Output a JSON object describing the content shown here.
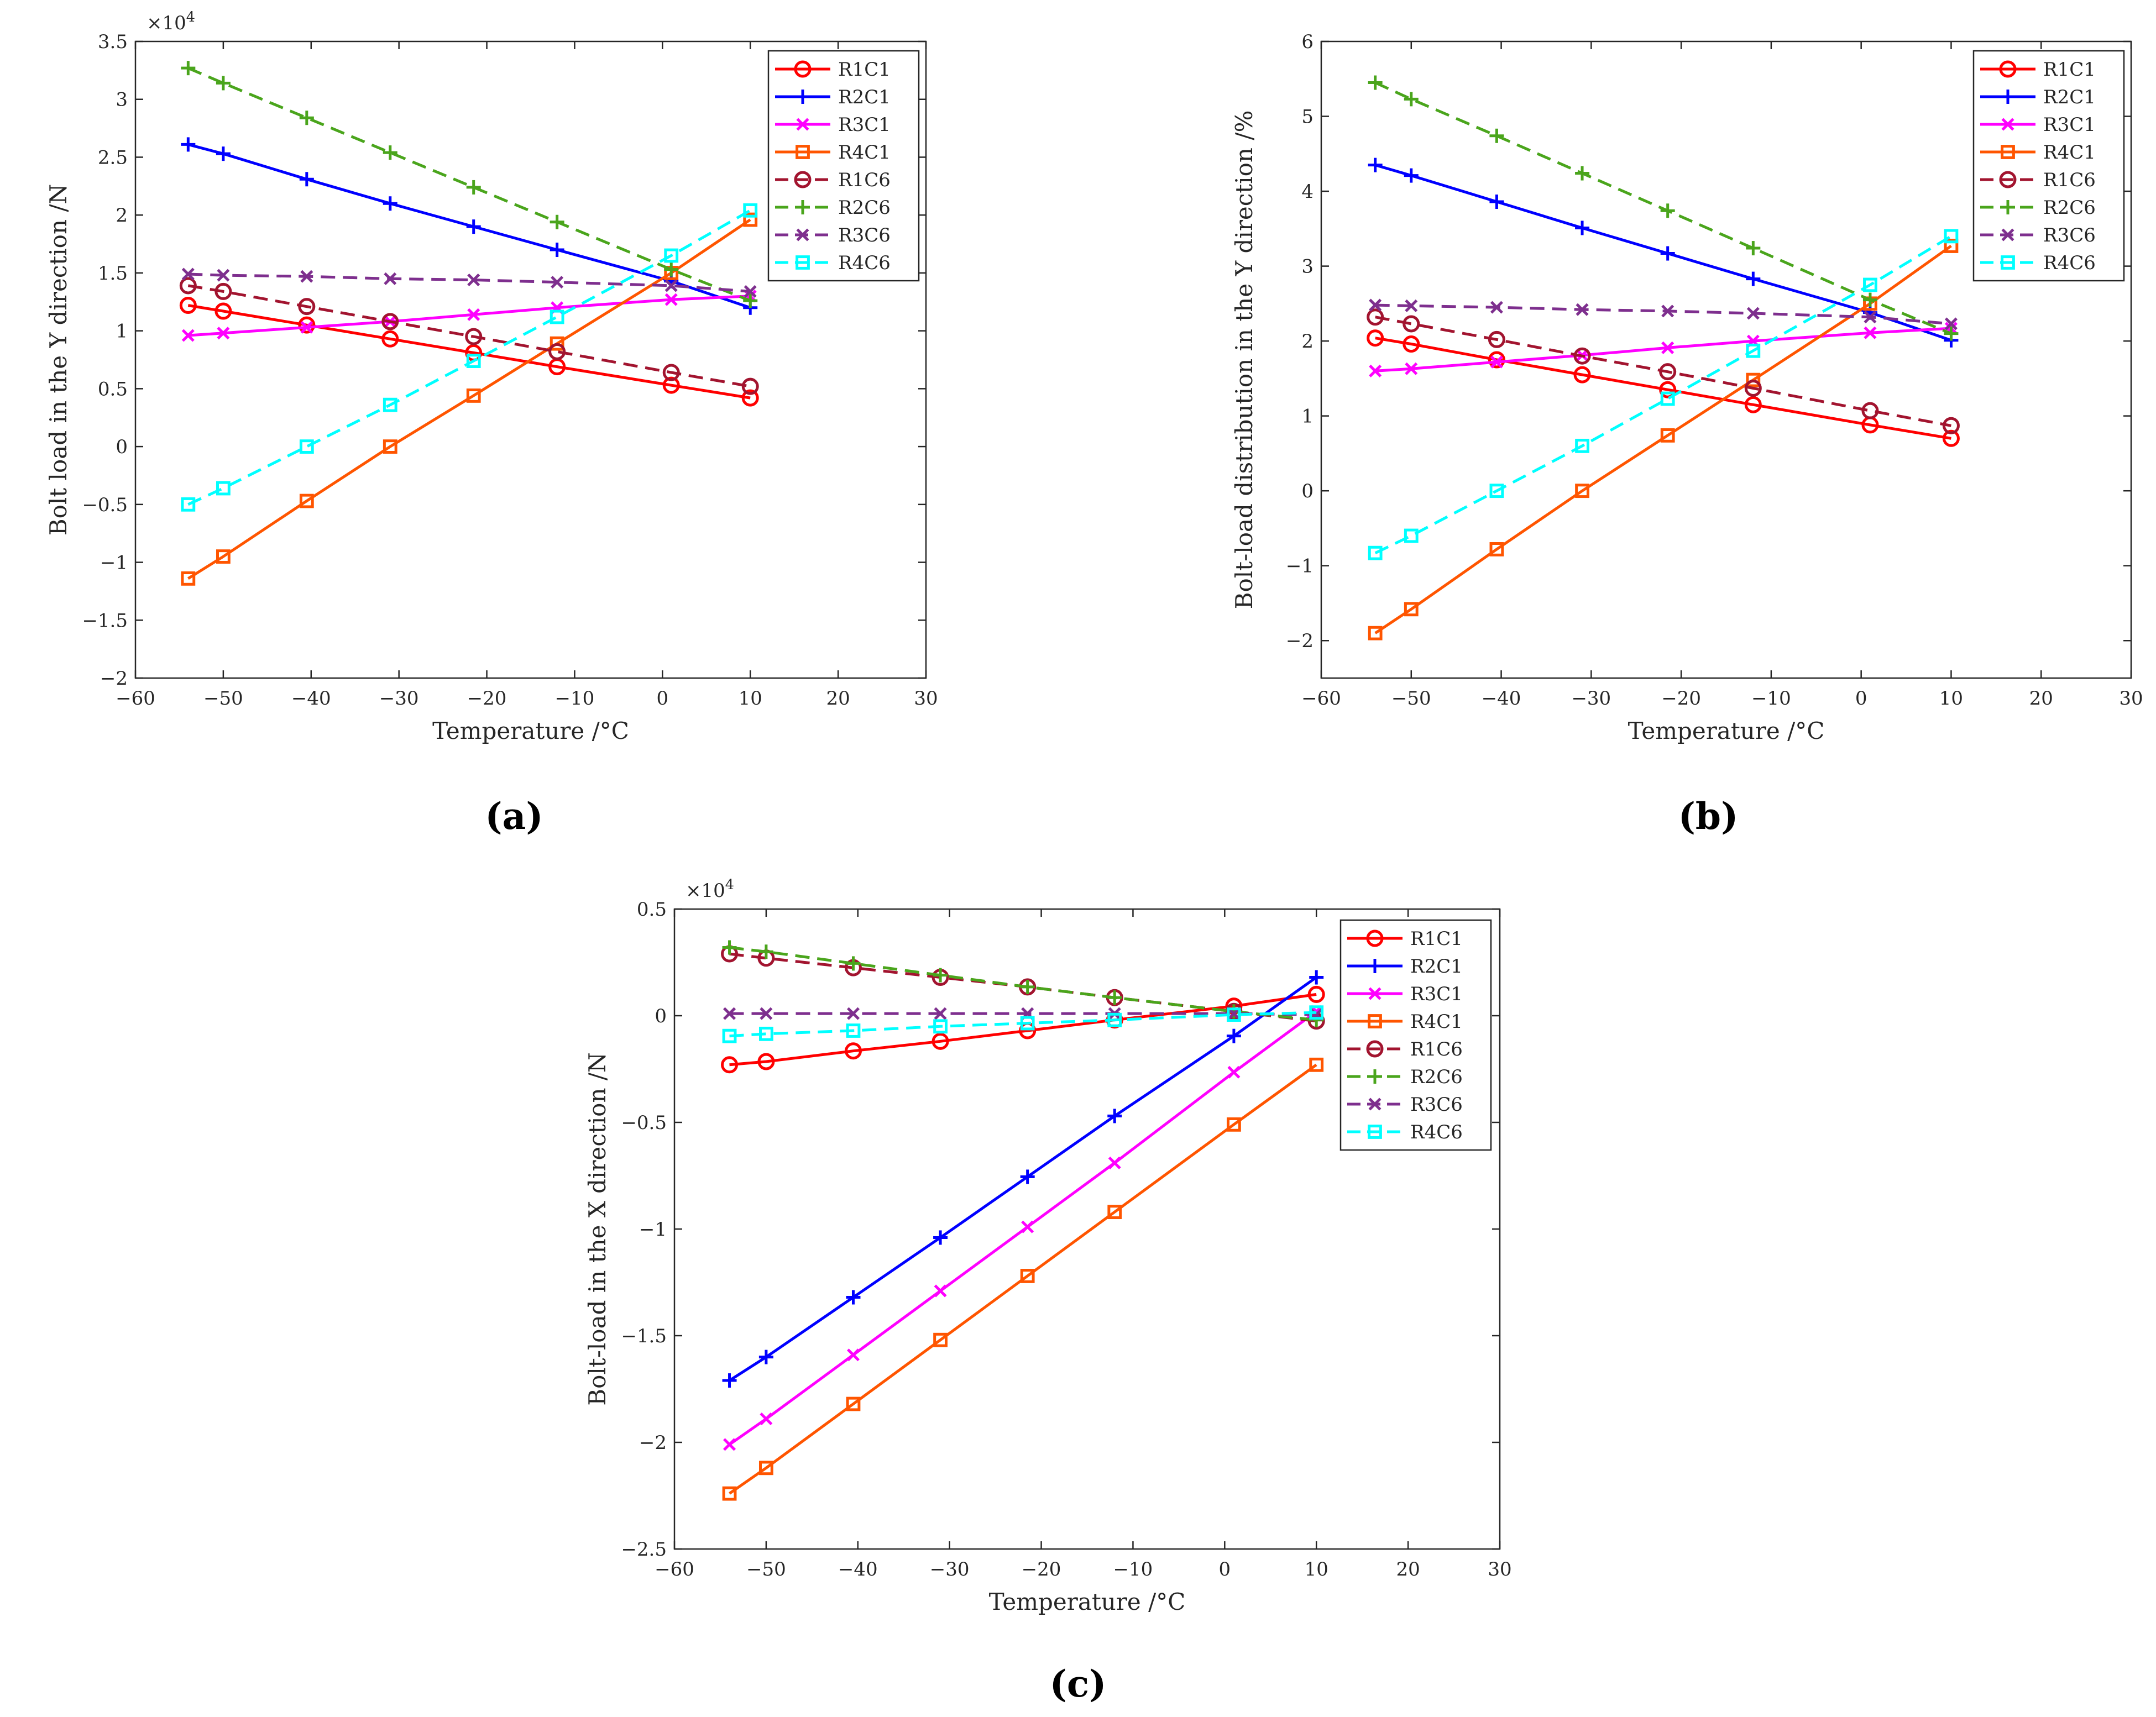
{
  "panel_labels": [
    "(a)",
    "(b)",
    "(c)"
  ],
  "chart_data": [
    {
      "type": "line",
      "panel": "(a)",
      "xlabel": "Temperature /°C",
      "ylabel": "Bolt load in the Y direction /N",
      "y_multiplier": "×10",
      "y_multiplier_exp": "4",
      "xlim": [
        -60,
        30
      ],
      "ylim": [
        -2,
        3.5
      ],
      "xticks": [
        "−60",
        "−50",
        "−40",
        "−30",
        "−20",
        "−10",
        "0",
        "10",
        "20",
        "30"
      ],
      "yticks": [
        "−2",
        "−1.5",
        "−1",
        "−0.5",
        "0",
        "0.5",
        "1",
        "1.5",
        "2",
        "2.5",
        "3",
        "3.5"
      ],
      "grid": false,
      "legend_position": "top-right",
      "x": [
        -54,
        -50,
        -40.5,
        -31,
        -21.5,
        -12,
        1,
        10
      ],
      "series": [
        {
          "name": "R1C1",
          "color": "#ff0000",
          "style": "solid",
          "marker": "circle",
          "values": [
            1.22,
            1.17,
            1.05,
            0.93,
            0.81,
            0.69,
            0.53,
            0.42
          ]
        },
        {
          "name": "R2C1",
          "color": "#0000ff",
          "style": "solid",
          "marker": "plus",
          "values": [
            2.61,
            2.53,
            2.31,
            2.1,
            1.9,
            1.7,
            1.43,
            1.2
          ]
        },
        {
          "name": "R3C1",
          "color": "#ff00ff",
          "style": "solid",
          "marker": "x",
          "values": [
            0.96,
            0.98,
            1.03,
            1.08,
            1.14,
            1.2,
            1.27,
            1.3
          ]
        },
        {
          "name": "R4C1",
          "color": "#ff5500",
          "style": "solid",
          "marker": "square",
          "values": [
            -1.14,
            -0.95,
            -0.47,
            0.0,
            0.44,
            0.89,
            1.5,
            1.96
          ]
        },
        {
          "name": "R1C6",
          "color": "#a2142f",
          "style": "dashed",
          "marker": "circle",
          "values": [
            1.39,
            1.34,
            1.21,
            1.08,
            0.95,
            0.82,
            0.64,
            0.52
          ]
        },
        {
          "name": "R2C6",
          "color": "#4aa51c",
          "style": "dashed",
          "marker": "plus",
          "values": [
            3.27,
            3.14,
            2.84,
            2.54,
            2.24,
            1.94,
            1.53,
            1.26
          ]
        },
        {
          "name": "R3C6",
          "color": "#7e2f8e",
          "style": "dashed",
          "marker": "x",
          "values": [
            1.49,
            1.48,
            1.47,
            1.45,
            1.44,
            1.42,
            1.39,
            1.34
          ]
        },
        {
          "name": "R4C6",
          "color": "#00ffff",
          "style": "dashed",
          "marker": "square",
          "values": [
            -0.5,
            -0.36,
            0.0,
            0.36,
            0.74,
            1.12,
            1.65,
            2.04
          ]
        }
      ]
    },
    {
      "type": "line",
      "panel": "(b)",
      "xlabel": "Temperature /°C",
      "ylabel": "Bolt-load distribution in the Y direction /%",
      "xlim": [
        -60,
        30
      ],
      "ylim": [
        -2.5,
        6
      ],
      "xticks": [
        "−60",
        "−50",
        "−40",
        "−30",
        "−20",
        "−10",
        "0",
        "10",
        "20",
        "30"
      ],
      "yticks": [
        "−2",
        "−1",
        "0",
        "1",
        "2",
        "3",
        "4",
        "5",
        "6"
      ],
      "grid": false,
      "legend_position": "top-right",
      "x": [
        -54,
        -50,
        -40.5,
        -31,
        -21.5,
        -12,
        1,
        10
      ],
      "series": [
        {
          "name": "R1C1",
          "color": "#ff0000",
          "style": "solid",
          "marker": "circle",
          "values": [
            2.04,
            1.96,
            1.75,
            1.55,
            1.35,
            1.15,
            0.88,
            0.7
          ]
        },
        {
          "name": "R2C1",
          "color": "#0000ff",
          "style": "solid",
          "marker": "plus",
          "values": [
            4.35,
            4.21,
            3.86,
            3.51,
            3.17,
            2.83,
            2.38,
            2.01
          ]
        },
        {
          "name": "R3C1",
          "color": "#ff00ff",
          "style": "solid",
          "marker": "x",
          "values": [
            1.6,
            1.63,
            1.72,
            1.81,
            1.91,
            2.0,
            2.11,
            2.17
          ]
        },
        {
          "name": "R4C1",
          "color": "#ff5500",
          "style": "solid",
          "marker": "square",
          "values": [
            -1.9,
            -1.58,
            -0.78,
            0.0,
            0.74,
            1.48,
            2.5,
            3.27
          ]
        },
        {
          "name": "R1C6",
          "color": "#a2142f",
          "style": "dashed",
          "marker": "circle",
          "values": [
            2.32,
            2.23,
            2.02,
            1.8,
            1.59,
            1.37,
            1.07,
            0.87
          ]
        },
        {
          "name": "R2C6",
          "color": "#4aa51c",
          "style": "dashed",
          "marker": "plus",
          "values": [
            5.45,
            5.23,
            4.74,
            4.24,
            3.74,
            3.24,
            2.55,
            2.1
          ]
        },
        {
          "name": "R3C6",
          "color": "#7e2f8e",
          "style": "dashed",
          "marker": "x",
          "values": [
            2.48,
            2.47,
            2.45,
            2.42,
            2.4,
            2.37,
            2.32,
            2.23
          ]
        },
        {
          "name": "R4C6",
          "color": "#00ffff",
          "style": "dashed",
          "marker": "square",
          "values": [
            -0.83,
            -0.6,
            0.0,
            0.6,
            1.23,
            1.87,
            2.75,
            3.4
          ]
        }
      ]
    },
    {
      "type": "line",
      "panel": "(c)",
      "xlabel": "Temperature /°C",
      "ylabel": "Bolt-load in the X direction /N",
      "y_multiplier": "×10",
      "y_multiplier_exp": "4",
      "xlim": [
        -60,
        30
      ],
      "ylim": [
        -2.5,
        0.5
      ],
      "xticks": [
        "−60",
        "−50",
        "−40",
        "−30",
        "−20",
        "−10",
        "0",
        "10",
        "20",
        "30"
      ],
      "yticks": [
        "−2.5",
        "−2",
        "−1.5",
        "−1",
        "−0.5",
        "0",
        "0.5"
      ],
      "grid": false,
      "legend_position": "top-right",
      "x": [
        -54,
        -50,
        -40.5,
        -31,
        -21.5,
        -12,
        1,
        10
      ],
      "series": [
        {
          "name": "R1C1",
          "color": "#ff0000",
          "style": "solid",
          "marker": "circle",
          "values": [
            -0.23,
            -0.215,
            -0.165,
            -0.12,
            -0.07,
            -0.02,
            0.045,
            0.1
          ]
        },
        {
          "name": "R2C1",
          "color": "#0000ff",
          "style": "solid",
          "marker": "plus",
          "values": [
            -1.71,
            -1.6,
            -1.32,
            -1.04,
            -0.755,
            -0.47,
            -0.095,
            0.18
          ]
        },
        {
          "name": "R3C1",
          "color": "#ff00ff",
          "style": "solid",
          "marker": "x",
          "values": [
            -2.01,
            -1.89,
            -1.59,
            -1.29,
            -0.99,
            -0.69,
            -0.265,
            0.02
          ]
        },
        {
          "name": "R4C1",
          "color": "#ff5500",
          "style": "solid",
          "marker": "square",
          "values": [
            -2.24,
            -2.12,
            -1.82,
            -1.52,
            -1.22,
            -0.92,
            -0.51,
            -0.23
          ]
        },
        {
          "name": "R1C6",
          "color": "#a2142f",
          "style": "dashed",
          "marker": "circle",
          "values": [
            0.29,
            0.27,
            0.225,
            0.18,
            0.135,
            0.085,
            0.02,
            -0.025
          ]
        },
        {
          "name": "R2C6",
          "color": "#4aa51c",
          "style": "dashed",
          "marker": "plus",
          "values": [
            0.32,
            0.3,
            0.245,
            0.19,
            0.135,
            0.085,
            0.02,
            -0.02
          ]
        },
        {
          "name": "R3C6",
          "color": "#7e2f8e",
          "style": "dashed",
          "marker": "x",
          "values": [
            0.01,
            0.01,
            0.01,
            0.01,
            0.01,
            0.01,
            0.01,
            0.005
          ]
        },
        {
          "name": "R4C6",
          "color": "#00ffff",
          "style": "dashed",
          "marker": "square",
          "values": [
            -0.095,
            -0.085,
            -0.07,
            -0.05,
            -0.035,
            -0.02,
            0.005,
            0.015
          ]
        }
      ]
    }
  ]
}
